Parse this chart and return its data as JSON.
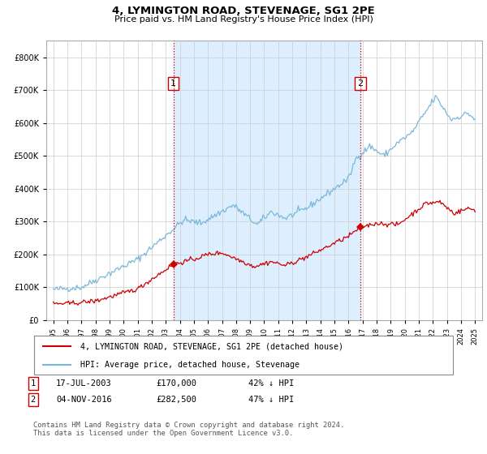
{
  "title": "4, LYMINGTON ROAD, STEVENAGE, SG1 2PE",
  "subtitle": "Price paid vs. HM Land Registry's House Price Index (HPI)",
  "legend_line1": "4, LYMINGTON ROAD, STEVENAGE, SG1 2PE (detached house)",
  "legend_line2": "HPI: Average price, detached house, Stevenage",
  "footer": "Contains HM Land Registry data © Crown copyright and database right 2024.\nThis data is licensed under the Open Government Licence v3.0.",
  "transaction1": {
    "label": "1",
    "date": "17-JUL-2003",
    "price": 170000,
    "hpi_pct": "42% ↓ HPI",
    "year": 2003.54
  },
  "transaction2": {
    "label": "2",
    "date": "04-NOV-2016",
    "price": 282500,
    "hpi_pct": "47% ↓ HPI",
    "year": 2016.84
  },
  "hpi_color": "#7ab8d9",
  "price_color": "#cc0000",
  "marker_color": "#cc0000",
  "dashed_color": "#cc0000",
  "shade_color": "#ddeeff",
  "background_color": "#ffffff",
  "grid_color": "#cccccc",
  "ylim": [
    0,
    850000
  ],
  "yticks": [
    0,
    100000,
    200000,
    300000,
    400000,
    500000,
    600000,
    700000,
    800000
  ],
  "xlim_start": 1994.5,
  "xlim_end": 2025.5
}
